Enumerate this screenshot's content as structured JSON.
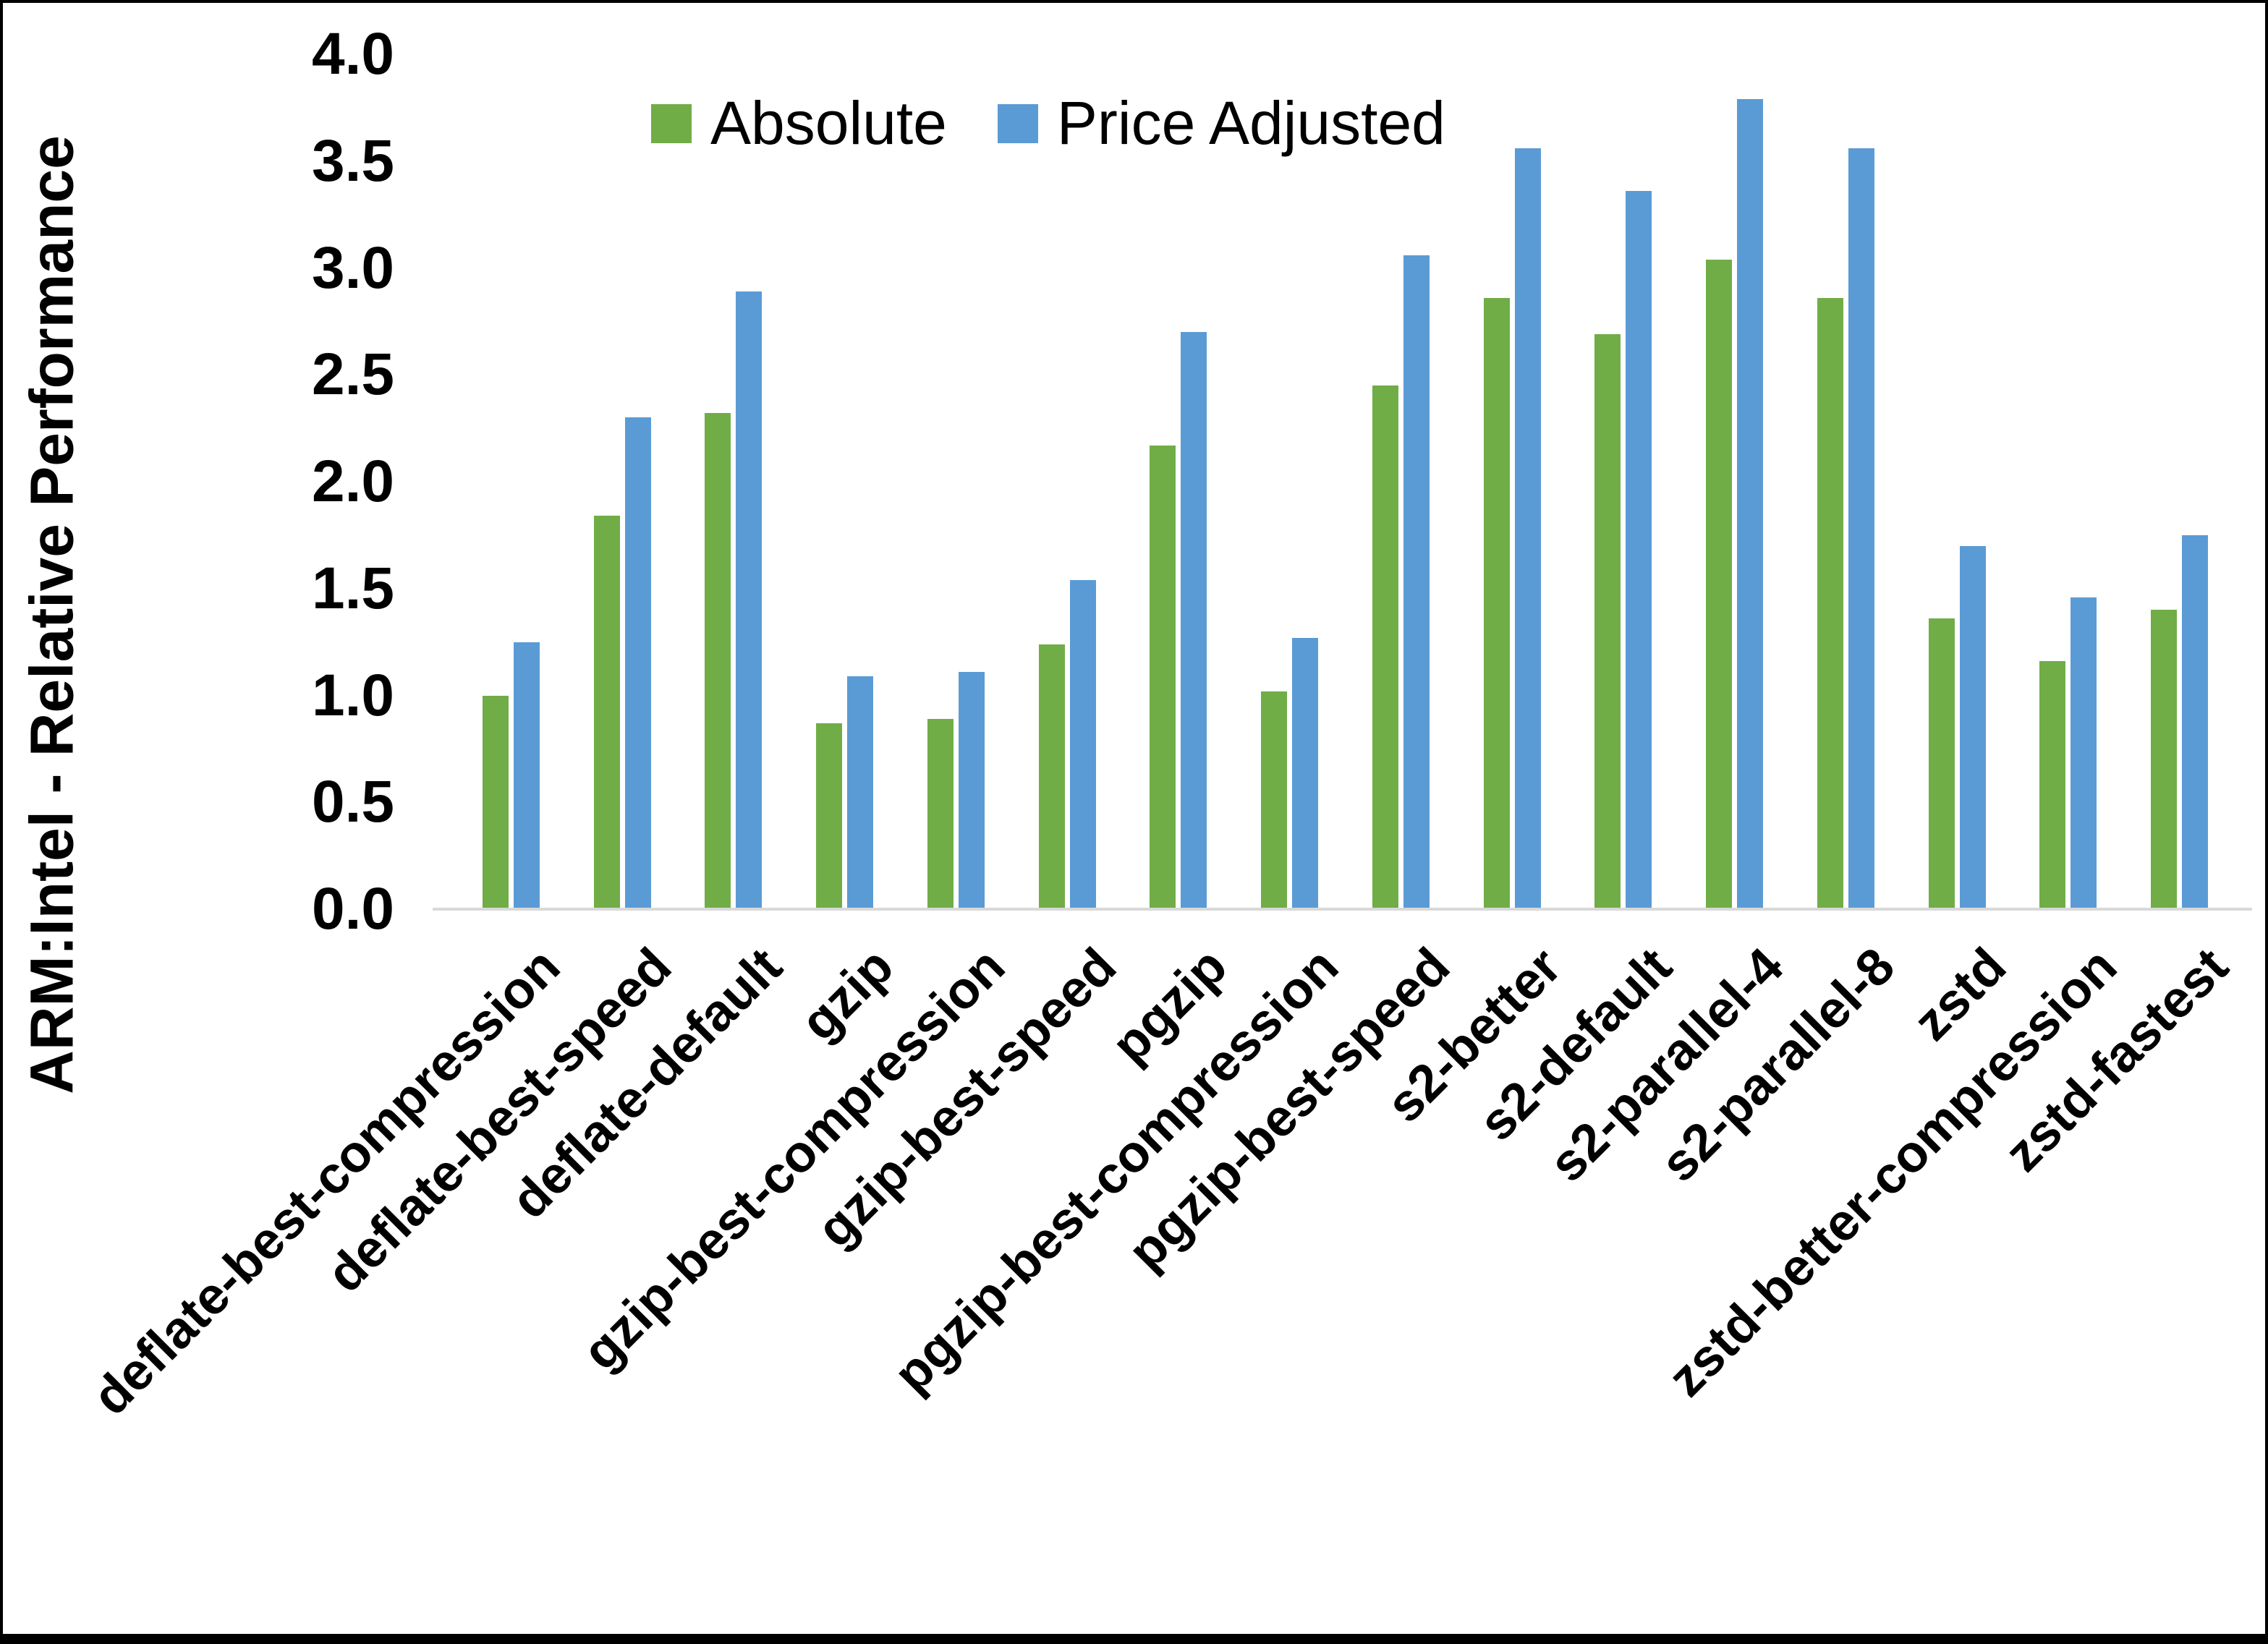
{
  "chart_data": {
    "type": "bar",
    "title": "",
    "ylabel": "ARM:Intel - Relative Performance",
    "xlabel": "",
    "ylim": [
      0,
      4
    ],
    "ytick_step": 0.5,
    "ytick_labels": [
      "0.0",
      "0.5",
      "1.0",
      "1.5",
      "2.0",
      "2.5",
      "3.0",
      "3.5",
      "4.0"
    ],
    "grid": false,
    "legend_position": "top",
    "axis_line_color": "#D9D9D9",
    "categories": [
      "deflate-best-compression",
      "deflate-best-speed",
      "deflate-default",
      "gzip",
      "gzip-best-compression",
      "gzip-best-speed",
      "pgzip",
      "pgzip-best-compression",
      "pgzip-best-speed",
      "s2-better",
      "s2-default",
      "s2-parallel-4",
      "s2-parallel-8",
      "zstd",
      "zstd-better-compression",
      "zstd-fastest"
    ],
    "series": [
      {
        "name": "Absolute",
        "color": "#70AD47",
        "values": [
          1.0,
          1.84,
          2.32,
          0.87,
          0.89,
          1.24,
          2.17,
          1.02,
          2.45,
          2.86,
          2.69,
          3.04,
          2.86,
          1.36,
          1.16,
          1.4
        ]
      },
      {
        "name": "Price Adjusted",
        "color": "#5B9BD5",
        "values": [
          1.25,
          2.3,
          2.89,
          1.09,
          1.11,
          1.54,
          2.7,
          1.27,
          3.06,
          3.56,
          3.36,
          3.79,
          3.56,
          1.7,
          1.46,
          1.75
        ]
      }
    ]
  }
}
